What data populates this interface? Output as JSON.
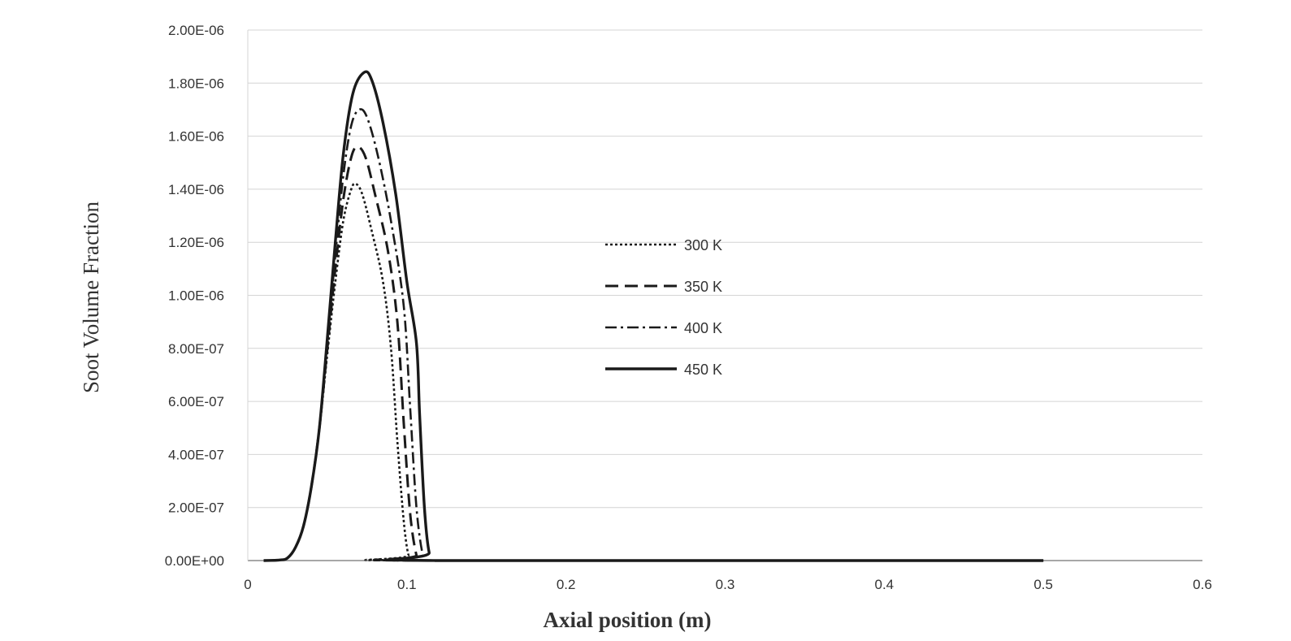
{
  "chart_data": {
    "type": "line",
    "title": "",
    "xlabel": "Axial position (m)",
    "ylabel": "Soot Volume Fraction",
    "xlim": [
      0,
      0.6
    ],
    "ylim": [
      0,
      2e-06
    ],
    "x_ticks": [
      0,
      0.1,
      0.2,
      0.3,
      0.4,
      0.5,
      0.6
    ],
    "x_tick_labels": [
      "0",
      "0.1",
      "0.2",
      "0.3",
      "0.4",
      "0.5",
      "0.6"
    ],
    "y_ticks": [
      0,
      2e-07,
      4e-07,
      6e-07,
      8e-07,
      1e-06,
      1.2e-06,
      1.4e-06,
      1.6e-06,
      1.8e-06,
      2e-06
    ],
    "y_tick_labels": [
      "0.00E+00",
      "2.00E-07",
      "4.00E-07",
      "6.00E-07",
      "8.00E-07",
      "1.00E-06",
      "1.20E-06",
      "1.40E-06",
      "1.60E-06",
      "1.80E-06",
      "2.00E-06"
    ],
    "grid": true,
    "legend_position": "center",
    "series": [
      {
        "name": "300 K",
        "style": "dotted",
        "color": "#1a1a1a",
        "points": [
          [
            0.01,
            0
          ],
          [
            0.02,
            2e-09
          ],
          [
            0.025,
            1e-08
          ],
          [
            0.03,
            5e-08
          ],
          [
            0.035,
            1.3e-07
          ],
          [
            0.04,
            2.8e-07
          ],
          [
            0.045,
            5e-07
          ],
          [
            0.05,
            7.8e-07
          ],
          [
            0.055,
            1.05e-06
          ],
          [
            0.06,
            1.28e-06
          ],
          [
            0.065,
            1.4e-06
          ],
          [
            0.068,
            1.42e-06
          ],
          [
            0.072,
            1.38e-06
          ],
          [
            0.078,
            1.24e-06
          ],
          [
            0.085,
            1.05e-06
          ],
          [
            0.09,
            8e-07
          ],
          [
            0.094,
            4.5e-07
          ],
          [
            0.098,
            1.5e-07
          ],
          [
            0.101,
            2e-08
          ],
          [
            0.104,
            0
          ],
          [
            0.5,
            0
          ]
        ]
      },
      {
        "name": "350 K",
        "style": "dashed",
        "color": "#1a1a1a",
        "points": [
          [
            0.01,
            0
          ],
          [
            0.02,
            2e-09
          ],
          [
            0.025,
            1e-08
          ],
          [
            0.03,
            5e-08
          ],
          [
            0.035,
            1.3e-07
          ],
          [
            0.04,
            2.8e-07
          ],
          [
            0.045,
            5e-07
          ],
          [
            0.05,
            8e-07
          ],
          [
            0.055,
            1.1e-06
          ],
          [
            0.06,
            1.36e-06
          ],
          [
            0.065,
            1.52e-06
          ],
          [
            0.069,
            1.56e-06
          ],
          [
            0.074,
            1.52e-06
          ],
          [
            0.08,
            1.38e-06
          ],
          [
            0.088,
            1.17e-06
          ],
          [
            0.094,
            9e-07
          ],
          [
            0.098,
            5.2e-07
          ],
          [
            0.102,
            1.8e-07
          ],
          [
            0.106,
            2e-08
          ],
          [
            0.109,
            0
          ],
          [
            0.5,
            0
          ]
        ]
      },
      {
        "name": "400 K",
        "style": "dashdot",
        "color": "#1a1a1a",
        "points": [
          [
            0.01,
            0
          ],
          [
            0.02,
            2e-09
          ],
          [
            0.025,
            1e-08
          ],
          [
            0.03,
            5e-08
          ],
          [
            0.035,
            1.3e-07
          ],
          [
            0.04,
            2.8e-07
          ],
          [
            0.045,
            5e-07
          ],
          [
            0.05,
            8.2e-07
          ],
          [
            0.055,
            1.15e-06
          ],
          [
            0.06,
            1.45e-06
          ],
          [
            0.065,
            1.64e-06
          ],
          [
            0.07,
            1.7e-06
          ],
          [
            0.075,
            1.67e-06
          ],
          [
            0.082,
            1.52e-06
          ],
          [
            0.09,
            1.28e-06
          ],
          [
            0.098,
            9.6e-07
          ],
          [
            0.102,
            5.8e-07
          ],
          [
            0.106,
            2e-07
          ],
          [
            0.11,
            2e-08
          ],
          [
            0.113,
            0
          ],
          [
            0.5,
            0
          ]
        ]
      },
      {
        "name": "450 K",
        "style": "solid",
        "color": "#1a1a1a",
        "points": [
          [
            0.01,
            0
          ],
          [
            0.02,
            2e-09
          ],
          [
            0.025,
            1e-08
          ],
          [
            0.03,
            5e-08
          ],
          [
            0.035,
            1.3e-07
          ],
          [
            0.04,
            2.8e-07
          ],
          [
            0.045,
            5e-07
          ],
          [
            0.05,
            8.4e-07
          ],
          [
            0.055,
            1.2e-06
          ],
          [
            0.06,
            1.53e-06
          ],
          [
            0.066,
            1.76e-06
          ],
          [
            0.073,
            1.84e-06
          ],
          [
            0.078,
            1.81e-06
          ],
          [
            0.085,
            1.65e-06
          ],
          [
            0.093,
            1.38e-06
          ],
          [
            0.1,
            1.05e-06
          ],
          [
            0.106,
            8.2e-07
          ],
          [
            0.108,
            5.5e-07
          ],
          [
            0.111,
            2e-07
          ],
          [
            0.114,
            3e-08
          ],
          [
            0.118,
            0
          ],
          [
            0.5,
            0
          ]
        ]
      }
    ]
  }
}
